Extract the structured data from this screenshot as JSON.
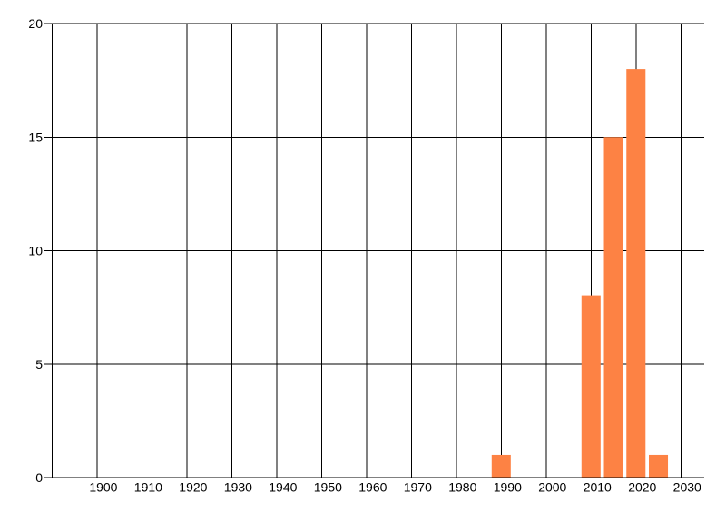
{
  "chart_data": {
    "type": "bar",
    "title": "",
    "xlabel": "",
    "ylabel": "",
    "x": [
      1990,
      2010,
      2015,
      2020,
      2025
    ],
    "values": [
      1,
      8,
      15,
      18,
      1
    ],
    "xlim": [
      1888.2,
      2035.2
    ],
    "ylim": [
      0,
      20
    ],
    "x_gridlines": [
      1890,
      1900,
      1910,
      1920,
      1930,
      1940,
      1950,
      1960,
      1970,
      1980,
      1990,
      2000,
      2010,
      2020,
      2030
    ],
    "x_ticks": [
      1900,
      1910,
      1920,
      1930,
      1940,
      1950,
      1960,
      1970,
      1980,
      1990,
      2000,
      2010,
      2020,
      2030
    ],
    "x_tick_labels": [
      "1900",
      "1910",
      "1920",
      "1930",
      "1940",
      "1950",
      "1960",
      "1970",
      "1980",
      "1990",
      "2000",
      "2010",
      "2020",
      "2030"
    ],
    "y_ticks": [
      0,
      5,
      10,
      15,
      20
    ],
    "y_tick_labels": [
      "0",
      "5",
      "10",
      "15",
      "20"
    ],
    "bar_width_years": 4.25,
    "grid": "on",
    "legend": "none",
    "colors": {
      "bar": "#fd8244",
      "grid": "#000000",
      "text": "#000000",
      "background": "#ffffff"
    }
  }
}
